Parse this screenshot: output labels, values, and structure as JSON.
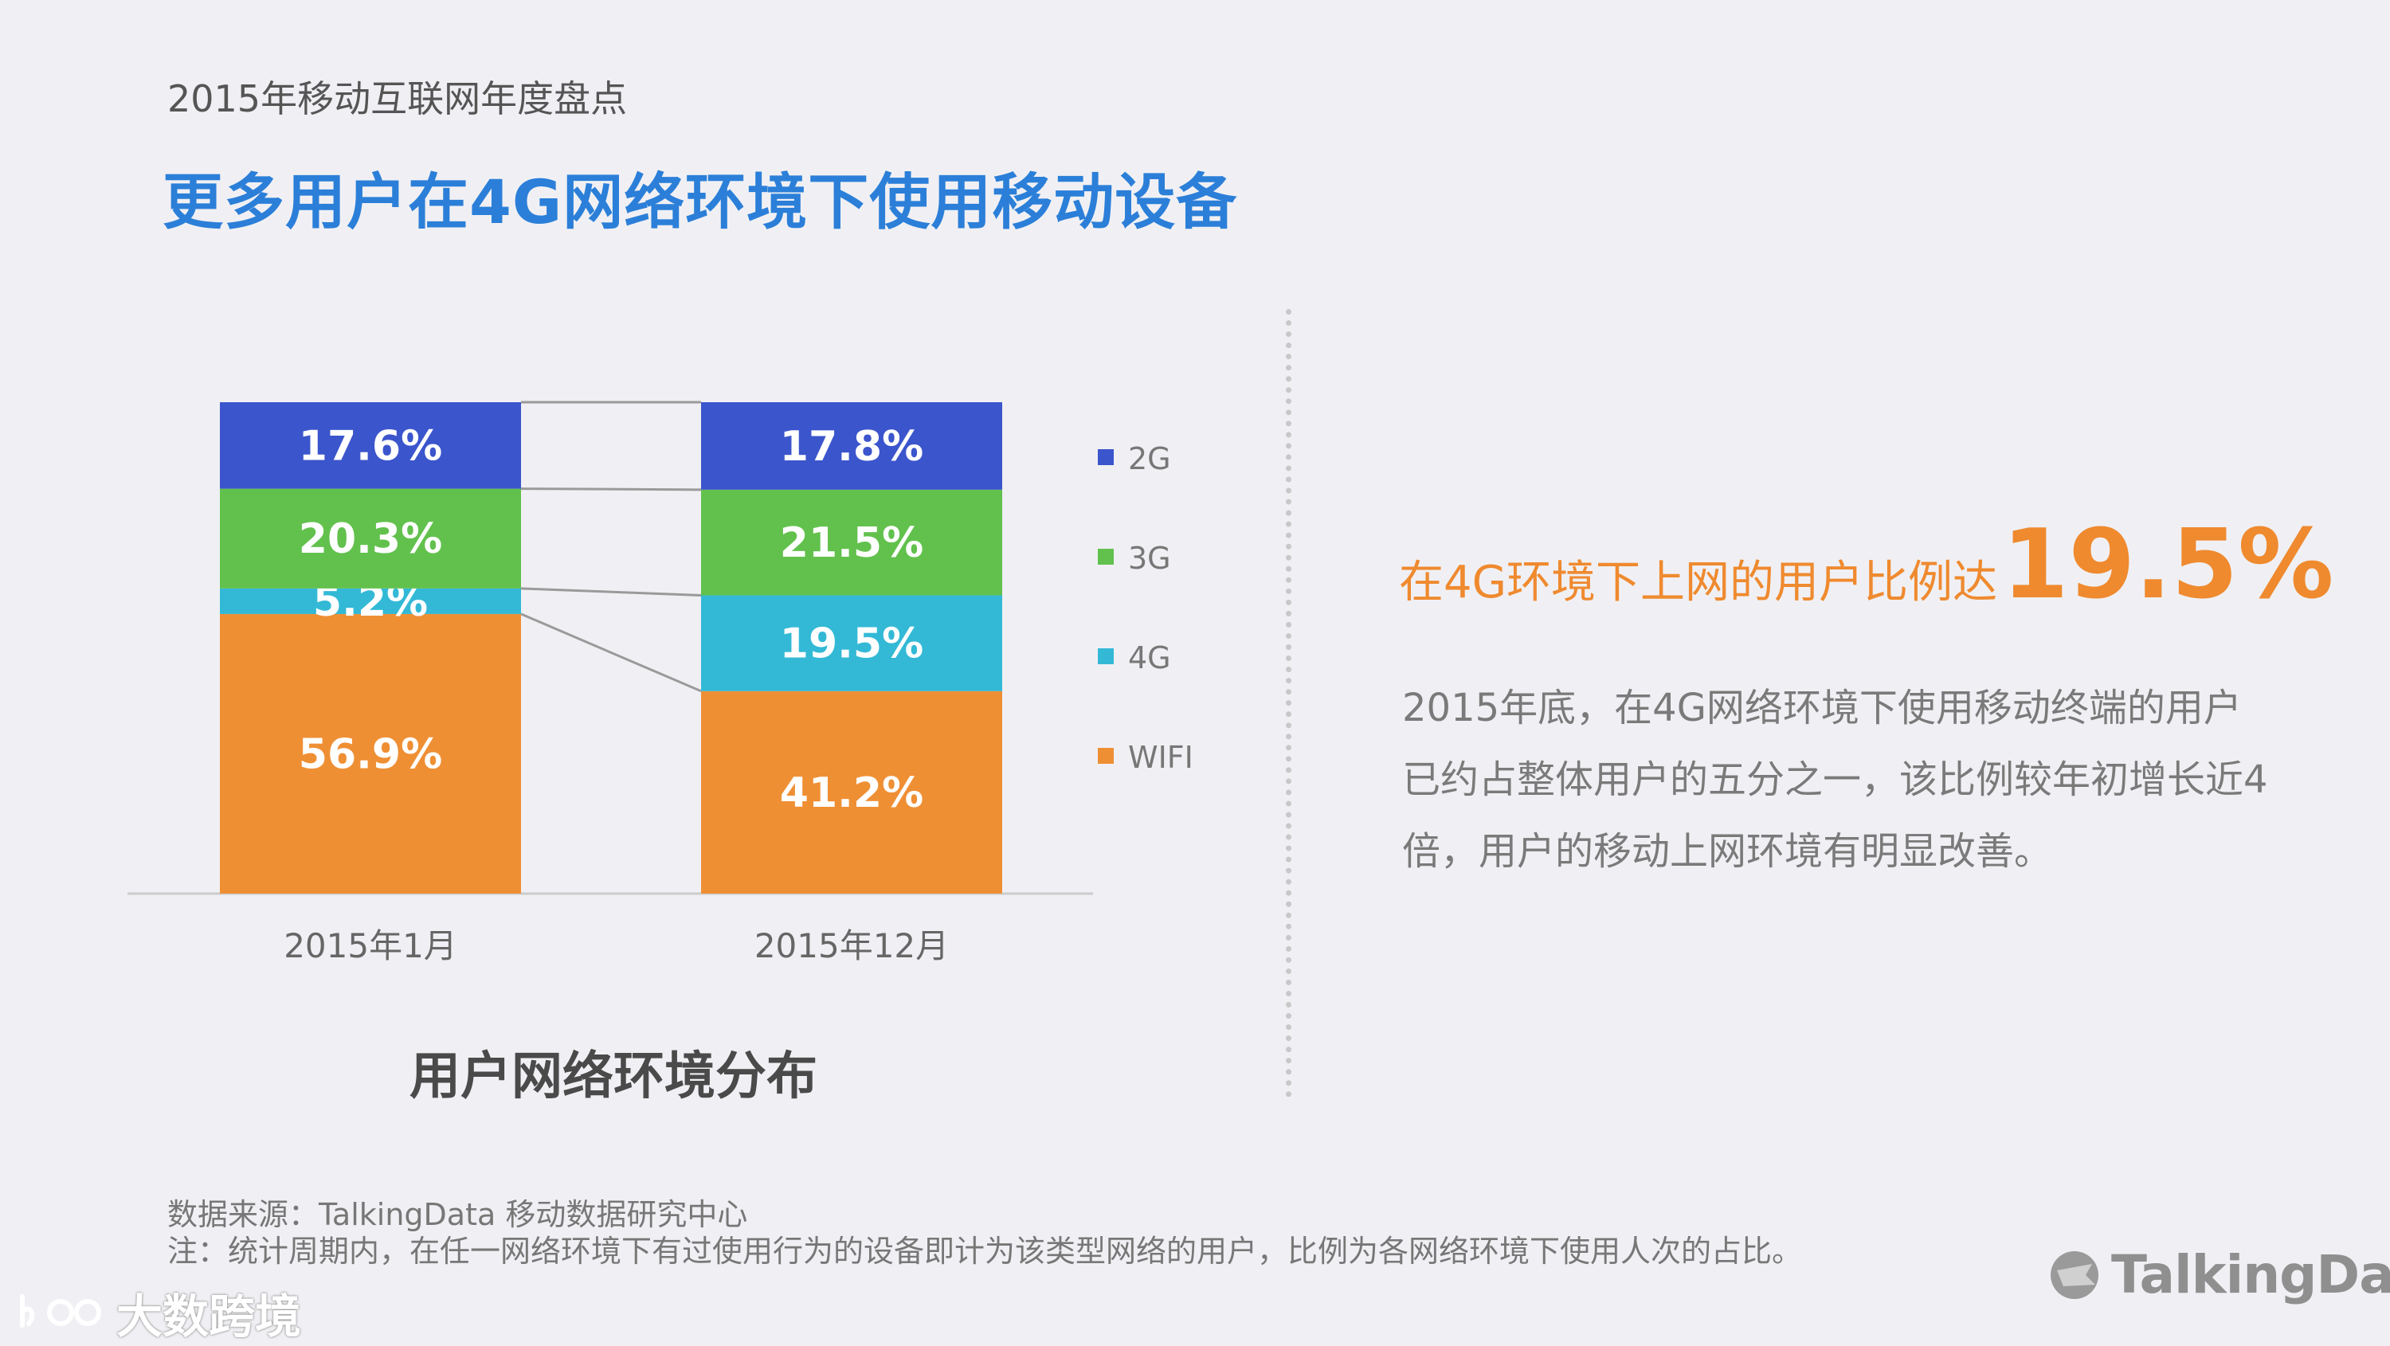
{
  "header": {
    "eyebrow": "2015年移动互联网年度盘点",
    "title": "更多用户在4G网络环境下使用移动设备"
  },
  "chart_data": {
    "type": "bar",
    "stacked": true,
    "percent": true,
    "title": "用户网络环境分布",
    "categories": [
      "2015年1月",
      "2015年12月"
    ],
    "series": [
      {
        "name": "WIFI",
        "values": [
          56.9,
          41.2
        ],
        "labels": [
          "56.9%",
          "41.2%"
        ],
        "color": "#ef8f34"
      },
      {
        "name": "4G",
        "values": [
          5.2,
          19.5
        ],
        "labels": [
          "5.2%",
          "19.5%"
        ],
        "color": "#33b9d6"
      },
      {
        "name": "3G",
        "values": [
          20.3,
          21.5
        ],
        "labels": [
          "20.3%",
          "21.5%"
        ],
        "color": "#62c14d"
      },
      {
        "name": "2G",
        "values": [
          17.6,
          17.8
        ],
        "labels": [
          "17.6%",
          "17.8%"
        ],
        "color": "#3b55cc"
      }
    ],
    "legend_order": [
      "2G",
      "3G",
      "4G",
      "WIFI"
    ],
    "legend_position": "right",
    "ylim": [
      0,
      100
    ],
    "grid": false,
    "connector_lines": true
  },
  "highlight": {
    "text": "在4G环境下上网的用户比例达",
    "value": "19.5%"
  },
  "body": {
    "paragraph": "2015年底，在4G网络环境下使用移动终端的用户已约占整体用户的五分之一，该比例较年初增长近4倍，用户的移动上网环境有明显改善。"
  },
  "footer": {
    "source": "数据来源：TalkingData 移动数据研究中心",
    "note": "注：统计周期内，在任一网络环境下有过使用行为的设备即计为该类型网络的用户，比例为各网络环境下使用人次的占比。"
  },
  "watermarks": {
    "left": "大数跨境",
    "right": "TalkingData"
  },
  "colors": {
    "title": "#2b7fd8",
    "highlight": "#ef8a2f",
    "baseline": "#cccccc",
    "connector": "#9a9a9a"
  }
}
